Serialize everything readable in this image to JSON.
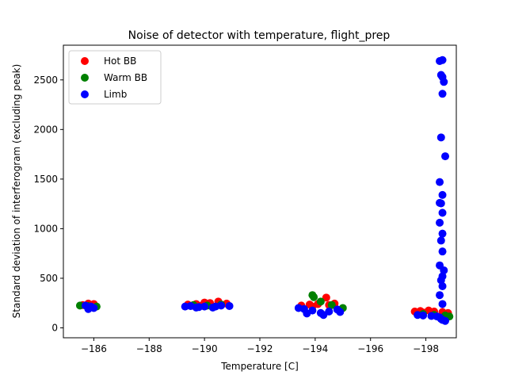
{
  "chart_data": {
    "type": "scatter",
    "title": "Noise of detector with temperature, flight_prep",
    "xlabel": "Temperature [C]",
    "ylabel": "Standard deviation of interferogram (excluding peak)",
    "xlim": [
      -184.9,
      -199.1
    ],
    "ylim": [
      -100,
      2850
    ],
    "xticks": [
      -186,
      -188,
      -190,
      -192,
      -194,
      -196,
      -198
    ],
    "xtick_labels": [
      "−186",
      "−188",
      "−190",
      "−192",
      "−194",
      "−196",
      "−198"
    ],
    "yticks": [
      0,
      500,
      1000,
      1500,
      2000,
      2500
    ],
    "ytick_labels": [
      "0",
      "500",
      "1000",
      "1500",
      "2000",
      "2500"
    ],
    "grid": false,
    "legend_position": "top-left",
    "series": [
      {
        "name": "Hot BB",
        "color": "#ff0000",
        "x": [
          -185.6,
          -185.8,
          -186.0,
          -185.9,
          -189.4,
          -189.7,
          -190.0,
          -190.2,
          -190.5,
          -190.8,
          -189.9,
          -190.6,
          -193.5,
          -193.8,
          -194.1,
          -194.4,
          -194.7,
          -193.9,
          -194.5,
          -197.6,
          -197.8,
          -198.1,
          -198.3,
          -198.6,
          -198.8,
          -197.9
        ],
        "y": [
          230,
          245,
          240,
          215,
          235,
          240,
          255,
          250,
          265,
          245,
          225,
          230,
          225,
          235,
          240,
          305,
          245,
          215,
          230,
          165,
          170,
          175,
          165,
          160,
          150,
          155
        ]
      },
      {
        "name": "Warm BB",
        "color": "#008000",
        "x": [
          -185.5,
          -185.8,
          -186.1,
          -189.6,
          -190.1,
          -190.6,
          -193.9,
          -193.95,
          -194.2,
          -194.6,
          -195.0,
          -197.9,
          -198.3,
          -198.7,
          -198.85
        ],
        "y": [
          225,
          220,
          215,
          230,
          225,
          235,
          330,
          310,
          265,
          230,
          200,
          140,
          130,
          125,
          115
        ]
      },
      {
        "name": "Limb",
        "color": "#0000ff",
        "x": [
          -185.7,
          -185.9,
          -186.0,
          -185.8,
          -189.3,
          -189.5,
          -189.8,
          -190.0,
          -190.3,
          -190.6,
          -190.9,
          -189.7,
          -190.4,
          -193.4,
          -193.6,
          -193.9,
          -194.2,
          -194.5,
          -194.8,
          -193.7,
          -194.3,
          -194.9,
          -197.7,
          -197.9,
          -198.2,
          -198.4,
          -198.5,
          -198.55,
          -198.6,
          -198.7,
          -198.6,
          -198.5,
          -198.55,
          -198.6,
          -198.7,
          -198.65,
          -198.6,
          -198.55,
          -198.5,
          -198.6,
          -198.5,
          -198.55,
          -198.6,
          -198.5,
          -198.6,
          -198.55,
          -198.6,
          -198.5,
          -198.65,
          -198.6,
          -198.55,
          -198.6,
          -198.5,
          -198.6
        ],
        "y": [
          225,
          215,
          200,
          190,
          215,
          220,
          210,
          215,
          205,
          225,
          220,
          205,
          215,
          200,
          190,
          175,
          150,
          165,
          185,
          145,
          130,
          160,
          130,
          125,
          120,
          115,
          105,
          90,
          80,
          70,
          2700,
          2690,
          2550,
          2530,
          1730,
          2480,
          2360,
          1920,
          1470,
          1340,
          1260,
          1255,
          1160,
          1060,
          950,
          880,
          770,
          630,
          580,
          520,
          480,
          420,
          330,
          240
        ]
      }
    ]
  }
}
